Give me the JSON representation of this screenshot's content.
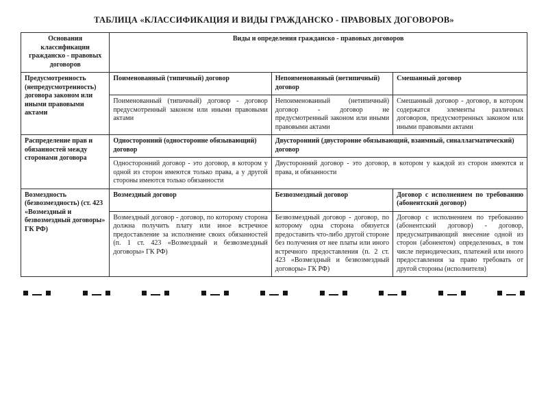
{
  "title": "ТАБЛИЦА «КЛАССИФИКАЦИЯ И ВИДЫ ГРАЖДАНСКО - ПРАВОВЫХ ДОГОВОРОВ»",
  "head": {
    "col0": "Основания классификации гражданско - правовых договоров",
    "col1": "Виды и определения гражданско - правовых договоров"
  },
  "row1": {
    "label": "Предусмотренность (непредусмотренность) договора законом или иными правовыми актами",
    "h1": "Поименованный (типичный) договор",
    "h2": "Непоименованный (нетипичный) договор",
    "h3": "Смешанный договор",
    "d1": "Поименованный (типичный) договор - договор предусмотренный законом или иными правовыми актами",
    "d2": "Непоименованный (нетипичный) договор - договор не предусмотренный законом или иными правовыми актами",
    "d3": "Смешанный договор - договор, в котором содержатся элементы различных договоров, предусмотренных законом или иными правовыми актами"
  },
  "row2": {
    "label": "Распределение прав и обязанностей между сторонами договора",
    "h1": "Односторонний (односторонне обязывающий) договор",
    "h2": "Двусторонний (двусторонне обязывающий, взаимный, синаллагматический) договор",
    "d1": "Односторонний договор - это договор, в котором у одной из сторон имеются только права, а у другой стороны имеются только обязанности",
    "d2": "Двусторонний договор - это договор, в котором у каждой из сторон имеются и права, и обязанности"
  },
  "row3": {
    "label": "Возмездность (безвозмездность) (ст. 423 «Возмездный и безвозмездный договоры» ГК РФ)",
    "h1": "Возмездный договор",
    "h2": "Безвозмездный договор",
    "h3": "Договор с исполнением по требованию (абонентский договор)",
    "d1": "Возмездный договор - договор, по которому сторона должна получить плату или иное встречное предоставление за исполнение своих обязанностей (п. 1 ст. 423 «Возмездный и безвозмездный договоры» ГК РФ)",
    "d2": "Безвозмездный договор - договор, по которому одна сторона обязуется предоставить что-либо другой стороне без получения от нее платы или иного встречного предоставления (п. 2 ст. 423 «Возмездный и безвозмездный договоры» ГК РФ)",
    "d3": "Договор с исполнением по требованию (абонентский договор) - договор, предусматривающий внесение одной из сторон (абонентом) определенных, в том числе периодических, платежей или иного предоставления за право требовать от другой стороны (исполнителя)"
  }
}
